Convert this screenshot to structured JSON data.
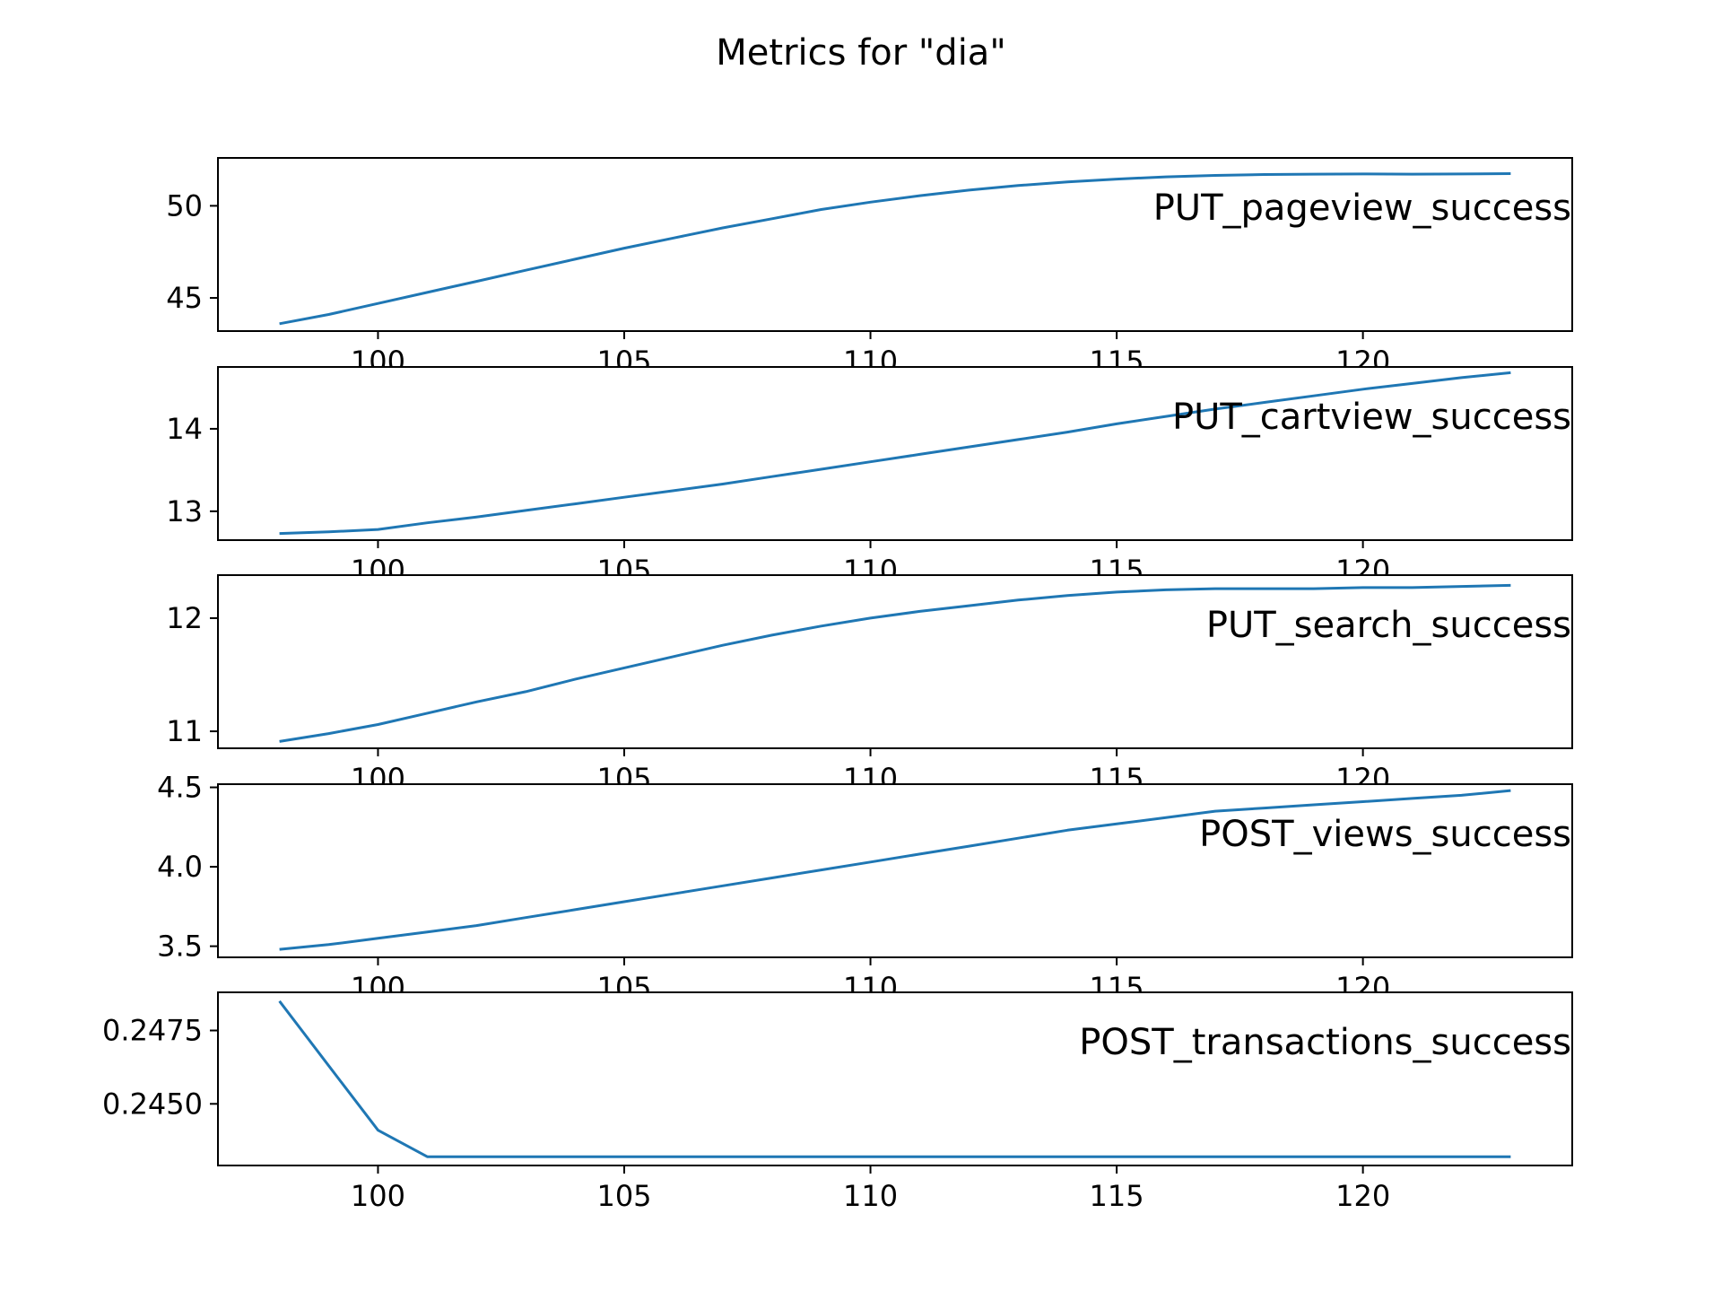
{
  "figure": {
    "title": "Metrics for \"dia\""
  },
  "chart_data": [
    {
      "type": "line",
      "series": [
        {
          "name": "PUT_pageview_success",
          "x": [
            98,
            99,
            100,
            101,
            102,
            103,
            104,
            105,
            106,
            107,
            108,
            109,
            110,
            111,
            112,
            113,
            114,
            115,
            116,
            117,
            118,
            119,
            120,
            121,
            122,
            123
          ],
          "y": [
            43.6,
            44.1,
            44.7,
            45.3,
            45.9,
            46.5,
            47.1,
            47.7,
            48.25,
            48.8,
            49.3,
            49.8,
            50.2,
            50.55,
            50.85,
            51.1,
            51.3,
            51.45,
            51.57,
            51.65,
            51.7,
            51.72,
            51.73,
            51.72,
            51.73,
            51.75
          ]
        }
      ],
      "xlim": [
        96.75,
        124.25
      ],
      "ylim": [
        43.2,
        52.6
      ],
      "xticks": [
        100,
        105,
        110,
        115,
        120
      ],
      "yticks": [
        45,
        50
      ],
      "ytick_labels": [
        "45",
        "50"
      ],
      "xtick_labels": [
        "100",
        "105",
        "110",
        "115",
        "120"
      ],
      "xtick_labels_visible": false,
      "grid": false
    },
    {
      "type": "line",
      "series": [
        {
          "name": "PUT_cartview_success",
          "x": [
            98,
            99,
            100,
            101,
            102,
            103,
            104,
            105,
            106,
            107,
            108,
            109,
            110,
            111,
            112,
            113,
            114,
            115,
            116,
            117,
            118,
            119,
            120,
            121,
            122,
            123
          ],
          "y": [
            12.73,
            12.75,
            12.78,
            12.86,
            12.93,
            13.01,
            13.09,
            13.17,
            13.25,
            13.33,
            13.42,
            13.51,
            13.6,
            13.69,
            13.78,
            13.87,
            13.96,
            14.06,
            14.15,
            14.24,
            14.32,
            14.4,
            14.48,
            14.55,
            14.62,
            14.68
          ]
        }
      ],
      "xlim": [
        96.75,
        124.25
      ],
      "ylim": [
        12.65,
        14.75
      ],
      "xticks": [
        100,
        105,
        110,
        115,
        120
      ],
      "yticks": [
        13,
        14
      ],
      "ytick_labels": [
        "13",
        "14"
      ],
      "xtick_labels": [
        "100",
        "105",
        "110",
        "115",
        "120"
      ],
      "xtick_labels_visible": false,
      "grid": false
    },
    {
      "type": "line",
      "series": [
        {
          "name": "PUT_search_success",
          "x": [
            98,
            99,
            100,
            101,
            102,
            103,
            104,
            105,
            106,
            107,
            108,
            109,
            110,
            111,
            112,
            113,
            114,
            115,
            116,
            117,
            118,
            119,
            120,
            121,
            122,
            123
          ],
          "y": [
            10.91,
            10.98,
            11.06,
            11.16,
            11.26,
            11.35,
            11.46,
            11.56,
            11.66,
            11.76,
            11.85,
            11.93,
            12.0,
            12.06,
            12.11,
            12.16,
            12.2,
            12.23,
            12.25,
            12.26,
            12.26,
            12.26,
            12.27,
            12.27,
            12.28,
            12.29
          ]
        }
      ],
      "xlim": [
        96.75,
        124.25
      ],
      "ylim": [
        10.85,
        12.38
      ],
      "xticks": [
        100,
        105,
        110,
        115,
        120
      ],
      "yticks": [
        11,
        12
      ],
      "ytick_labels": [
        "11",
        "12"
      ],
      "xtick_labels": [
        "100",
        "105",
        "110",
        "115",
        "120"
      ],
      "xtick_labels_visible": false,
      "grid": false
    },
    {
      "type": "line",
      "series": [
        {
          "name": "POST_views_success",
          "x": [
            98,
            99,
            100,
            101,
            102,
            103,
            104,
            105,
            106,
            107,
            108,
            109,
            110,
            111,
            112,
            113,
            114,
            115,
            116,
            117,
            118,
            119,
            120,
            121,
            122,
            123
          ],
          "y": [
            3.48,
            3.51,
            3.55,
            3.59,
            3.63,
            3.68,
            3.73,
            3.78,
            3.83,
            3.88,
            3.93,
            3.98,
            4.03,
            4.08,
            4.13,
            4.18,
            4.23,
            4.27,
            4.31,
            4.35,
            4.37,
            4.39,
            4.41,
            4.43,
            4.45,
            4.48
          ]
        }
      ],
      "xlim": [
        96.75,
        124.25
      ],
      "ylim": [
        3.43,
        4.52
      ],
      "xticks": [
        100,
        105,
        110,
        115,
        120
      ],
      "yticks": [
        3.5,
        4.0,
        4.5
      ],
      "ytick_labels": [
        "3.5",
        "4.0",
        "4.5"
      ],
      "xtick_labels": [
        "100",
        "105",
        "110",
        "115",
        "120"
      ],
      "xtick_labels_visible": false,
      "grid": false
    },
    {
      "type": "line",
      "series": [
        {
          "name": "POST_transactions_success",
          "x": [
            98,
            99,
            100,
            101,
            102,
            103,
            104,
            105,
            106,
            107,
            108,
            109,
            110,
            111,
            112,
            113,
            114,
            115,
            116,
            117,
            118,
            119,
            120,
            121,
            122,
            123
          ],
          "y": [
            0.2485,
            0.2463,
            0.2441,
            0.2432,
            0.2432,
            0.2432,
            0.2432,
            0.2432,
            0.2432,
            0.2432,
            0.2432,
            0.2432,
            0.2432,
            0.2432,
            0.2432,
            0.2432,
            0.2432,
            0.2432,
            0.2432,
            0.2432,
            0.2432,
            0.2432,
            0.2432,
            0.2432,
            0.2432,
            0.2432
          ]
        }
      ],
      "xlim": [
        96.75,
        124.25
      ],
      "ylim": [
        0.2429,
        0.2488
      ],
      "xticks": [
        100,
        105,
        110,
        115,
        120
      ],
      "yticks": [
        0.245,
        0.2475
      ],
      "ytick_labels": [
        "0.2450",
        "0.2475"
      ],
      "xtick_labels": [
        "100",
        "105",
        "110",
        "115",
        "120"
      ],
      "xtick_labels_visible": true,
      "grid": false
    }
  ],
  "style": {
    "line_color": "#1f77b4",
    "axis_color": "#000000",
    "background": "#ffffff"
  }
}
